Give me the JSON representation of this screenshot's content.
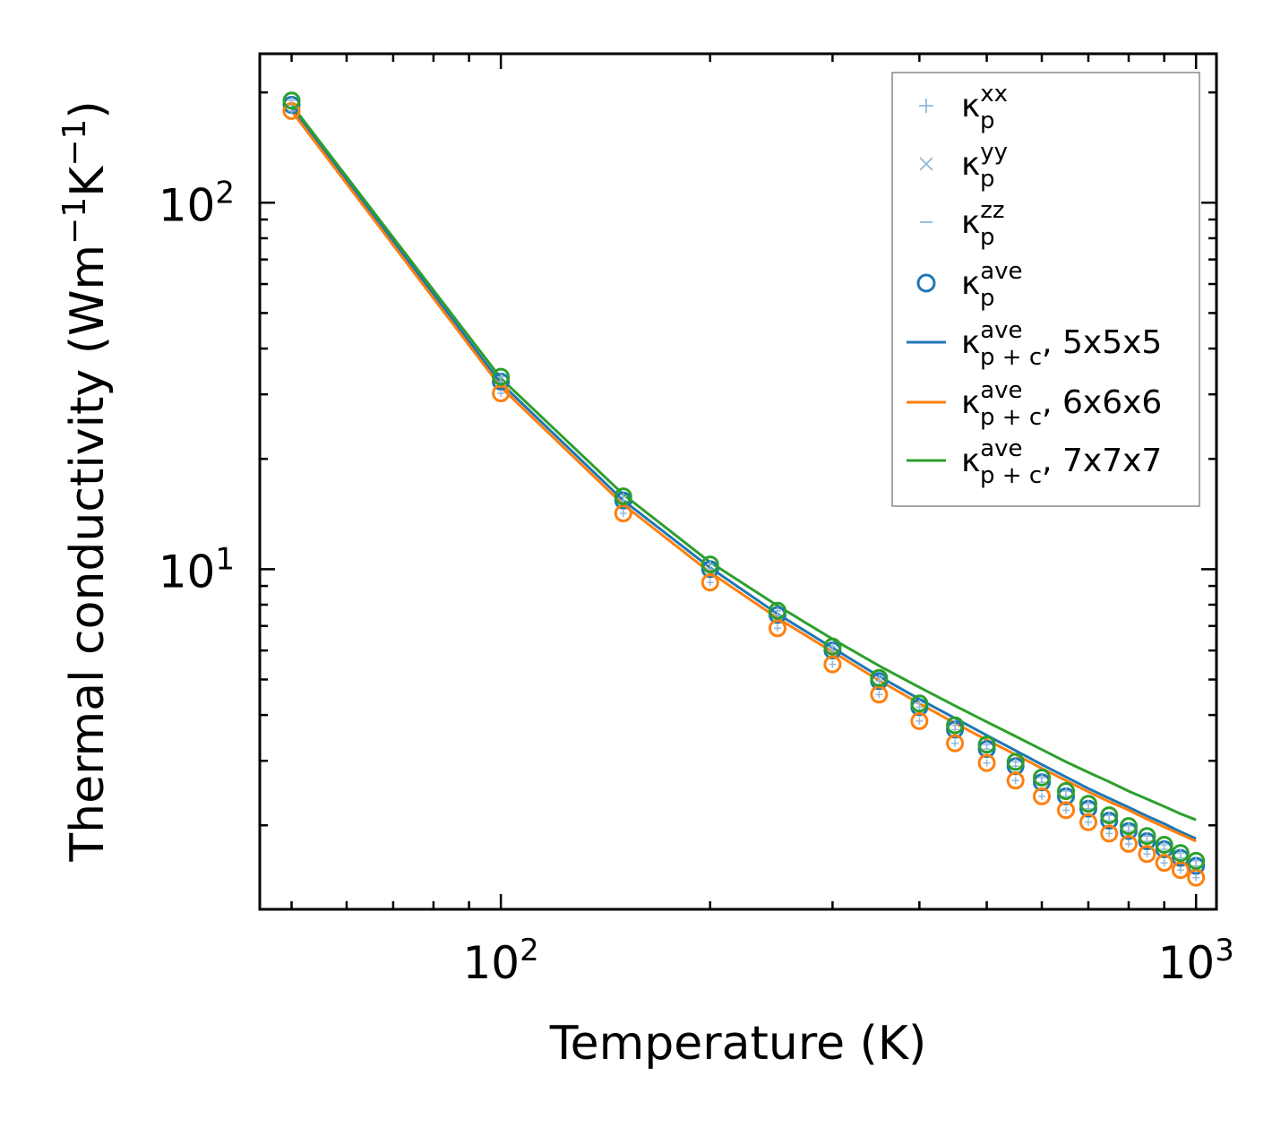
{
  "chart_data": {
    "type": "scatter",
    "title": "",
    "xlabel": "Temperature (K)",
    "ylabel_main": "Thermal conductivity (Wm",
    "ylabel_exp1": "−1",
    "ylabel_mid": "K",
    "ylabel_exp2": "−1",
    "ylabel_end": ")",
    "xscale": "log",
    "yscale": "log",
    "xlim": [
      45,
      1070
    ],
    "ylim": [
      1.18,
      255
    ],
    "x_ticks": [
      {
        "value": 100,
        "base": "10",
        "exp": "2"
      },
      {
        "value": 1000,
        "base": "10",
        "exp": "3"
      }
    ],
    "y_ticks": [
      {
        "value": 10,
        "base": "10",
        "exp": "1"
      },
      {
        "value": 100,
        "base": "10",
        "exp": "2"
      }
    ],
    "grid": false,
    "legend_position": "top-right",
    "x": [
      50,
      100,
      150,
      200,
      250,
      300,
      350,
      400,
      450,
      500,
      550,
      600,
      650,
      700,
      750,
      800,
      850,
      900,
      950,
      1000
    ],
    "scatter_series": [
      {
        "name": "5x5x5",
        "color": "#1f77b4",
        "values": [
          185,
          32.5,
          15.4,
          10.0,
          7.5,
          6.0,
          4.95,
          4.2,
          3.65,
          3.23,
          2.9,
          2.62,
          2.4,
          2.22,
          2.06,
          1.93,
          1.81,
          1.72,
          1.63,
          1.55
        ]
      },
      {
        "name": "6x6x6",
        "color": "#ff7f0e",
        "values": [
          178,
          30.2,
          14.2,
          9.2,
          6.9,
          5.5,
          4.55,
          3.85,
          3.35,
          2.96,
          2.65,
          2.4,
          2.2,
          2.04,
          1.9,
          1.78,
          1.67,
          1.58,
          1.51,
          1.44
        ]
      },
      {
        "name": "7x7x7",
        "color": "#2ca02c",
        "values": [
          190,
          33.5,
          15.8,
          10.3,
          7.7,
          6.15,
          5.05,
          4.3,
          3.75,
          3.32,
          2.98,
          2.7,
          2.48,
          2.29,
          2.13,
          1.99,
          1.87,
          1.77,
          1.68,
          1.6
        ]
      }
    ],
    "line_series": [
      {
        "name": "κp+c ave, 5x5x5",
        "color": "#1f77b4",
        "values": [
          182,
          32.2,
          15.4,
          10.1,
          7.55,
          6.1,
          5.1,
          4.42,
          3.92,
          3.52,
          3.2,
          2.93,
          2.71,
          2.52,
          2.37,
          2.24,
          2.12,
          2.02,
          1.92,
          1.84
        ]
      },
      {
        "name": "κp+c ave, 6x6x6",
        "color": "#ff7f0e",
        "values": [
          178,
          31.4,
          15.0,
          9.8,
          7.35,
          5.95,
          4.97,
          4.3,
          3.8,
          3.42,
          3.12,
          2.86,
          2.65,
          2.47,
          2.32,
          2.2,
          2.08,
          1.98,
          1.89,
          1.81
        ]
      },
      {
        "name": "κp+c ave, 7x7x7",
        "color": "#2ca02c",
        "values": [
          185,
          33.2,
          16.0,
          10.45,
          7.95,
          6.45,
          5.45,
          4.76,
          4.24,
          3.83,
          3.5,
          3.22,
          2.98,
          2.79,
          2.63,
          2.48,
          2.36,
          2.25,
          2.15,
          2.07
        ]
      }
    ],
    "legend": [
      {
        "kind": "plus",
        "color": "#92b9d9",
        "base": "κ",
        "sup": "xx",
        "sub": "p",
        "suffix": ""
      },
      {
        "kind": "cross",
        "color": "#92b9d9",
        "base": "κ",
        "sup": "yy",
        "sub": "p",
        "suffix": ""
      },
      {
        "kind": "dash",
        "color": "#92b9d9",
        "base": "κ",
        "sup": "zz",
        "sub": "p",
        "suffix": ""
      },
      {
        "kind": "circle",
        "color": "#1f77b4",
        "base": "κ",
        "sup": "ave",
        "sub": "p",
        "suffix": ""
      },
      {
        "kind": "line",
        "color": "#1f77b4",
        "base": "κ",
        "sup": "ave",
        "sub": "p + c",
        "suffix": ", 5x5x5"
      },
      {
        "kind": "line",
        "color": "#ff7f0e",
        "base": "κ",
        "sup": "ave",
        "sub": "p + c",
        "suffix": ", 6x6x6"
      },
      {
        "kind": "line",
        "color": "#2ca02c",
        "base": "κ",
        "sup": "ave",
        "sub": "p + c",
        "suffix": ", 7x7x7"
      }
    ]
  }
}
